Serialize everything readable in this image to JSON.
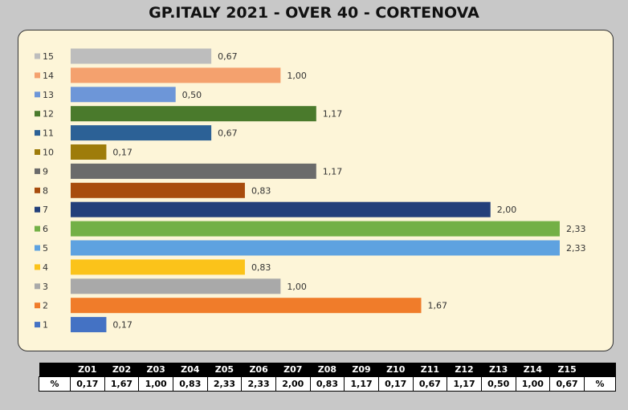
{
  "title": "GP.ITALY 2021 - OVER 40 - CORTENOVA",
  "chart_data": {
    "type": "bar",
    "orientation": "horizontal",
    "title": "GP.ITALY 2021 - OVER 40 - CORTENOVA",
    "categories": [
      "15",
      "14",
      "13",
      "12",
      "11",
      "10",
      "9",
      "8",
      "7",
      "6",
      "5",
      "4",
      "3",
      "2",
      "1"
    ],
    "values": [
      0.67,
      1.0,
      0.5,
      1.17,
      0.67,
      0.17,
      1.17,
      0.83,
      2.0,
      2.33,
      2.33,
      0.83,
      1.0,
      1.67,
      0.17
    ],
    "value_labels": [
      "0,67",
      "1,00",
      "0,50",
      "1,17",
      "0,67",
      "0,17",
      "1,17",
      "0,83",
      "2,00",
      "2,33",
      "2,33",
      "0,83",
      "1,00",
      "1,67",
      "0,17"
    ],
    "colors": [
      "#bdbdbd",
      "#f4a16e",
      "#6d96d8",
      "#4a7a2c",
      "#2c6196",
      "#9e7c0a",
      "#6b6b6b",
      "#a84c0d",
      "#233f7a",
      "#73b046",
      "#5ea2e0",
      "#fbc31a",
      "#a9a9a9",
      "#f07c2a",
      "#4472c4"
    ],
    "xlim": [
      0,
      2.33
    ],
    "grid": false,
    "legend": "left"
  },
  "table": {
    "headers": [
      "Z01",
      "Z02",
      "Z03",
      "Z04",
      "Z05",
      "Z06",
      "Z07",
      "Z08",
      "Z09",
      "Z10",
      "Z11",
      "Z12",
      "Z13",
      "Z14",
      "Z15"
    ],
    "row_label": "%",
    "row_label_end": "%",
    "values": [
      "0,17",
      "1,67",
      "1,00",
      "0,83",
      "2,33",
      "2,33",
      "2,00",
      "0,83",
      "1,17",
      "0,17",
      "0,67",
      "1,17",
      "0,50",
      "1,00",
      "0,67"
    ]
  }
}
